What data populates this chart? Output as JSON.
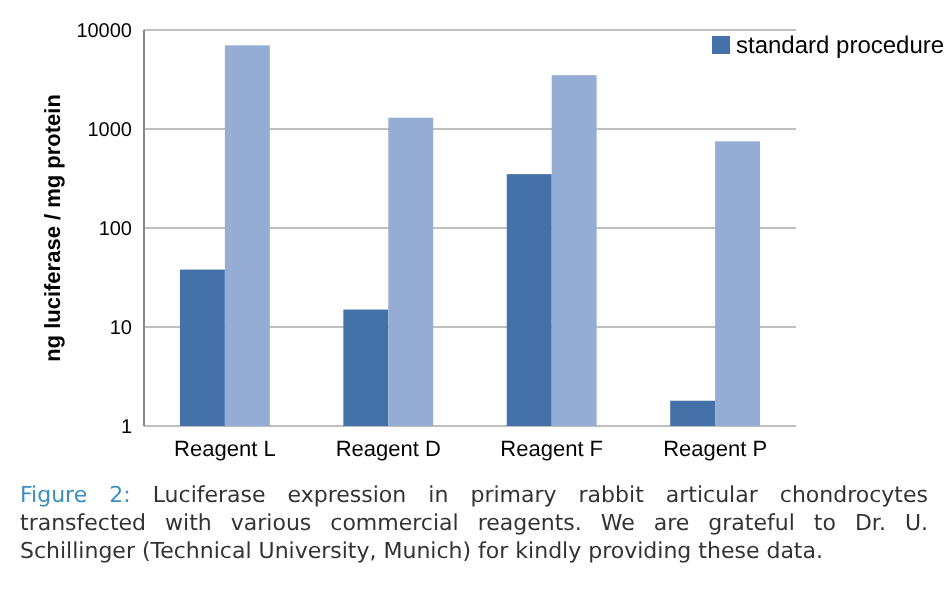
{
  "chart_data": {
    "type": "bar",
    "ylabel": "ng luciferase / mg protein",
    "categories": [
      "Reagent L",
      "Reagent D",
      "Reagent F",
      "Reagent P"
    ],
    "series": [
      {
        "name": "standard procedure",
        "color": "#4472a8",
        "values": [
          38,
          15,
          350,
          1.8
        ]
      },
      {
        "color": "#95add5",
        "values": [
          7000,
          1300,
          3500,
          750
        ]
      }
    ],
    "log": true,
    "ylim": [
      1,
      10000
    ],
    "yticks": [
      1,
      10,
      100,
      1000,
      10000
    ],
    "grid": "y",
    "legend": "top right",
    "annotations": [
      "Figure 2:",
      "Luciferase expression in primary rabbit articular chondrocytes transfected with various commercial reagents. We are grateful to Dr. U. Schillinger (Technical University, Munich) for kindly providing these data."
    ]
  }
}
